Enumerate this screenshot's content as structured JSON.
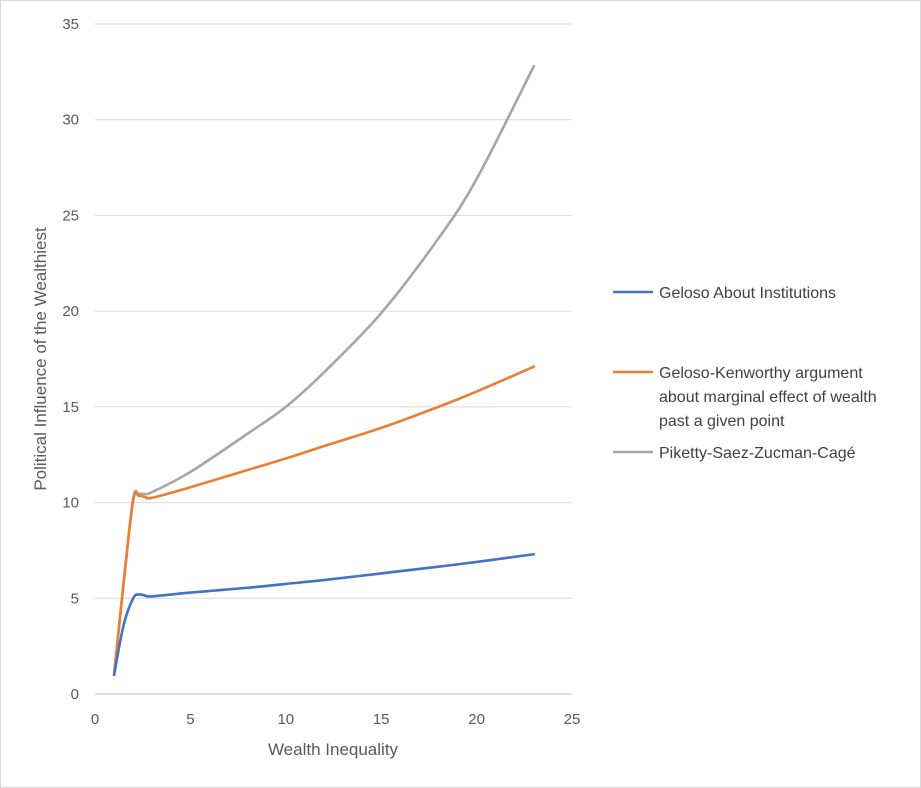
{
  "chart_data": {
    "type": "line",
    "title": "",
    "xlabel": "Wealth Inequality",
    "ylabel": "Political Influence of the Wealthiest",
    "xlim": [
      0,
      25
    ],
    "ylim": [
      0,
      35
    ],
    "xticks": [
      0,
      5,
      10,
      15,
      20,
      25
    ],
    "yticks": [
      0,
      5,
      10,
      15,
      20,
      25,
      30,
      35
    ],
    "grid": "horizontal",
    "legend": "right",
    "series": [
      {
        "name": "Geloso About Institutions",
        "color": "#4472C4",
        "x": [
          1,
          1.5,
          2,
          2.3,
          2.6,
          3,
          5,
          8,
          10,
          12,
          15,
          18,
          20,
          23
        ],
        "y": [
          1,
          3.6,
          5.0,
          5.2,
          5.15,
          5.1,
          5.3,
          5.55,
          5.75,
          5.95,
          6.3,
          6.65,
          6.9,
          7.3
        ]
      },
      {
        "name": "Geloso-Kenworthy argument about marginal effect of wealth past a given point",
        "color": "#ED7D31",
        "x": [
          1,
          1.5,
          2,
          2.3,
          2.6,
          3,
          5,
          8,
          10,
          12,
          15,
          18,
          20,
          23
        ],
        "y": [
          1,
          5.8,
          10.1,
          10.35,
          10.3,
          10.25,
          10.8,
          11.7,
          12.3,
          12.95,
          13.9,
          15.0,
          15.8,
          17.1
        ]
      },
      {
        "name": "Piketty-Saez-Zucman-Cagé",
        "color": "#A5A5A5",
        "x": [
          1,
          1.5,
          2,
          2.3,
          2.6,
          3,
          5,
          8,
          10,
          12,
          15,
          18,
          20,
          23
        ],
        "y": [
          1,
          5.8,
          10.2,
          10.45,
          10.45,
          10.55,
          11.6,
          13.6,
          15.0,
          16.8,
          19.9,
          23.8,
          26.9,
          32.8
        ]
      }
    ],
    "legend_lines": [
      [
        "Geloso About Institutions"
      ],
      [
        "Geloso-Kenworthy argument",
        "about marginal effect of wealth",
        "past a given point"
      ],
      [
        "Piketty-Saez-Zucman-Cagé"
      ]
    ]
  }
}
